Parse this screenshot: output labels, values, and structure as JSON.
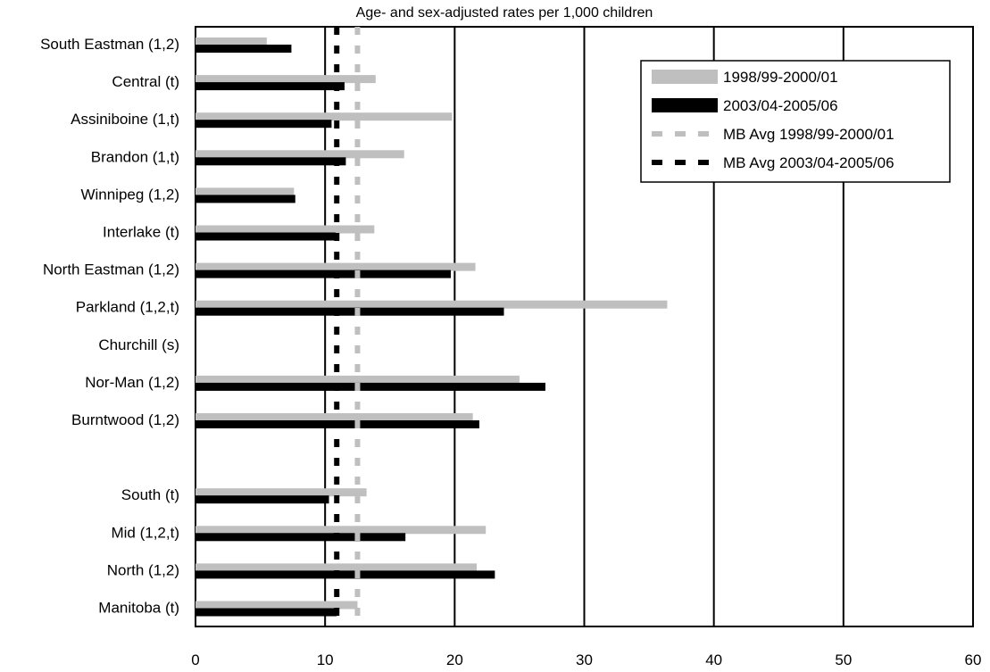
{
  "chart_data": {
    "type": "bar",
    "orientation": "horizontal",
    "title": "Age- and sex-adjusted rates per 1,000 children",
    "xlim": [
      0,
      60
    ],
    "x_ticks": [
      "0",
      "10",
      "20",
      "30",
      "40",
      "50",
      "60"
    ],
    "grid": "vertical lines at each tick",
    "legend_position": "top-right",
    "categories": [
      "South Eastman (1,2)",
      "Central (t)",
      "Assiniboine (1,t)",
      "Brandon (1,t)",
      "Winnipeg (1,2)",
      "Interlake (t)",
      "North Eastman (1,2)",
      "Parkland (1,2,t)",
      "Churchill (s)",
      "Nor-Man (1,2)",
      "Burntwood (1,2)",
      "",
      "South (t)",
      "Mid (1,2,t)",
      "North (1,2)",
      "Manitoba (t)"
    ],
    "series": [
      {
        "name": "1998/99-2000/01",
        "color": "#bfbfbf",
        "values": [
          5.5,
          13.9,
          19.8,
          16.1,
          7.6,
          13.8,
          21.6,
          36.4,
          null,
          25.0,
          21.4,
          null,
          13.2,
          22.4,
          21.7,
          12.5
        ]
      },
      {
        "name": "2003/04-2005/06",
        "color": "#000000",
        "values": [
          7.4,
          11.5,
          10.5,
          11.6,
          7.7,
          10.8,
          19.7,
          23.8,
          null,
          27.0,
          21.9,
          null,
          10.3,
          16.2,
          23.1,
          10.9
        ]
      }
    ],
    "reference_lines": [
      {
        "name": "MB Avg 1998/99-2000/01",
        "color": "#bfbfbf",
        "value": 12.5
      },
      {
        "name": "MB Avg 2003/04-2005/06",
        "color": "#000000",
        "value": 10.9
      }
    ]
  }
}
